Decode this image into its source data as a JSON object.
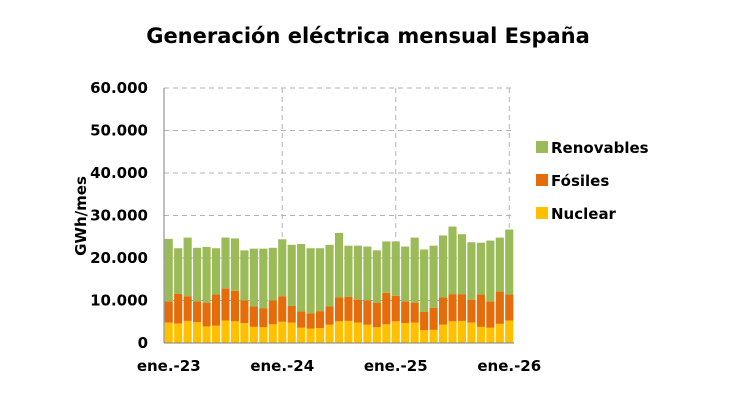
{
  "chart_data": {
    "type": "bar",
    "stacked": true,
    "title": "Generación eléctrica mensual España",
    "ylabel": "GWh/mes",
    "xlabel": "",
    "ylim": [
      0,
      60000
    ],
    "yticks": [
      "0",
      "10.000",
      "20.000",
      "30.000",
      "40.000",
      "50.000",
      "60.000"
    ],
    "ytick_values": [
      0,
      10000,
      20000,
      30000,
      40000,
      50000,
      60000
    ],
    "xticks": [
      {
        "label": "ene.-23",
        "index": 0
      },
      {
        "label": "ene.-24",
        "index": 12
      },
      {
        "label": "ene.-25",
        "index": 24
      },
      {
        "label": "ene.-26",
        "index": 36
      }
    ],
    "grid": true,
    "legend_position": "right",
    "categories": [
      "ene.-23",
      "feb.-23",
      "mar.-23",
      "abr.-23",
      "may.-23",
      "jun.-23",
      "jul.-23",
      "ago.-23",
      "sep.-23",
      "oct.-23",
      "nov.-23",
      "dic.-23",
      "ene.-24",
      "feb.-24",
      "mar.-24",
      "abr.-24",
      "may.-24",
      "jun.-24",
      "jul.-24",
      "ago.-24",
      "sep.-24",
      "oct.-24",
      "nov.-24",
      "dic.-24",
      "ene.-25",
      "feb.-25",
      "mar.-25",
      "abr.-25",
      "may.-25",
      "jun.-25",
      "jul.-25",
      "ago.-25",
      "sep.-25",
      "oct.-25",
      "nov.-25",
      "dic.-25",
      "ene.-26"
    ],
    "series": [
      {
        "name": "Nuclear",
        "color": "#ffc000",
        "values": [
          4800,
          4600,
          5200,
          4900,
          3900,
          4100,
          5300,
          5100,
          4700,
          3800,
          3700,
          4400,
          5000,
          4800,
          3600,
          3400,
          3500,
          4300,
          5100,
          5200,
          4800,
          4300,
          3700,
          4400,
          5100,
          4700,
          4800,
          3000,
          3100,
          4300,
          5100,
          5200,
          4800,
          3800,
          3600,
          4500,
          5300
        ]
      },
      {
        "name": "Fósiles",
        "color": "#e46c0a",
        "values": [
          5000,
          7000,
          5800,
          4900,
          5600,
          7300,
          7500,
          7200,
          5300,
          4800,
          4500,
          5600,
          6000,
          3900,
          3800,
          3600,
          4000,
          4300,
          5600,
          5700,
          5400,
          5700,
          5800,
          7400,
          6000,
          5100,
          4700,
          4300,
          5200,
          6400,
          6400,
          6300,
          5400,
          7600,
          6200,
          7600,
          6100
        ]
      },
      {
        "name": "Renovables",
        "color": "#9bbb59",
        "values": [
          14700,
          10700,
          13800,
          12600,
          13100,
          10900,
          12000,
          12300,
          11800,
          13600,
          14000,
          12400,
          13400,
          14400,
          15900,
          15300,
          14800,
          14500,
          15200,
          12000,
          12700,
          12700,
          12300,
          12100,
          12800,
          12900,
          15300,
          14700,
          14600,
          14600,
          15900,
          14100,
          13500,
          12200,
          14300,
          12700,
          15300
        ]
      }
    ]
  }
}
